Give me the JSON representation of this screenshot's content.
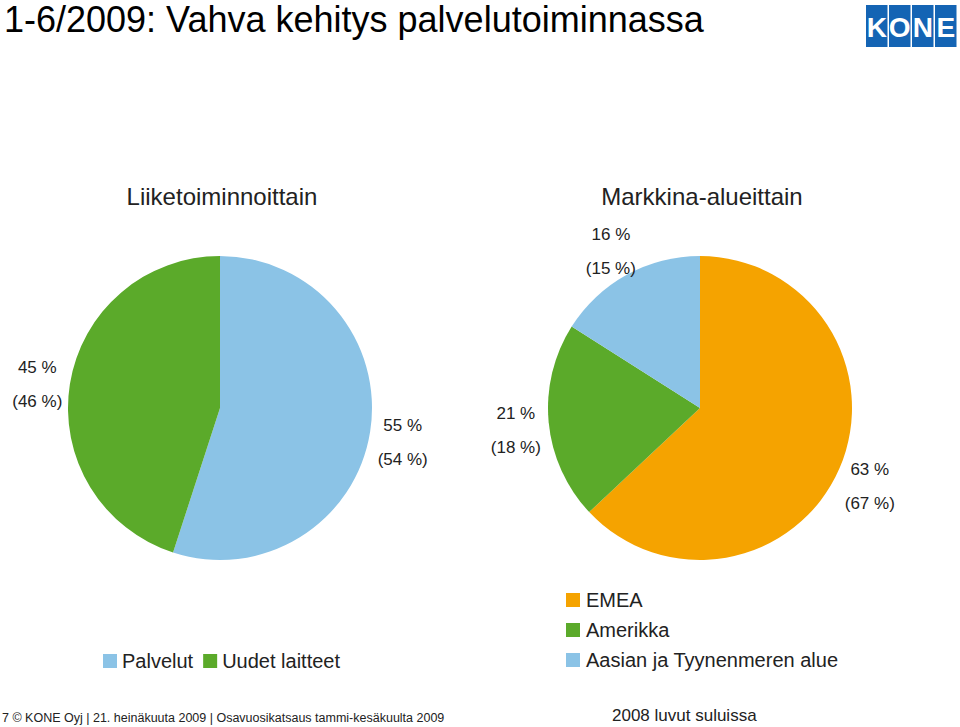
{
  "title": "1-6/2009: Vahva kehitys palvelutoiminnassa",
  "logo": "KONE",
  "footer": "7 © KONE Oyj | 21. heinäkuuta 2009 | Osavuosikatsaus tammi-kesäkuulta 2009",
  "note": "2008 luvut suluissa",
  "chart_data": [
    {
      "type": "pie",
      "title": "Liiketoiminnoittain",
      "categories": [
        "Palvelut",
        "Uudet laitteet"
      ],
      "values": [
        55,
        45
      ],
      "value_labels": [
        "55 %",
        "45 %"
      ],
      "prior_values": [
        54,
        46
      ],
      "prior_value_labels": [
        "(54 %)",
        "(46 %)"
      ],
      "colors": [
        "#8bc3e6",
        "#5baa2a"
      ],
      "data_labels": true,
      "legend": "bottom"
    },
    {
      "type": "pie",
      "title": "Markkina-alueittain",
      "categories": [
        "EMEA",
        "Amerikka",
        "Aasian ja Tyynenmeren alue"
      ],
      "values": [
        63,
        21,
        16
      ],
      "value_labels": [
        "63 %",
        "21 %",
        "16 %"
      ],
      "prior_values": [
        67,
        18,
        15
      ],
      "prior_value_labels": [
        "(67 %)",
        "(18 %)",
        "(15 %)"
      ],
      "colors": [
        "#f5a300",
        "#5baa2a",
        "#8bc3e6"
      ],
      "data_labels": true,
      "legend": "bottom"
    }
  ]
}
